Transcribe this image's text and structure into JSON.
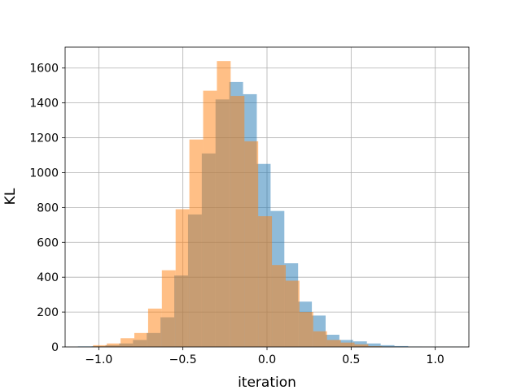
{
  "chart_data": {
    "type": "histogram",
    "title": "",
    "xlabel": "iteration",
    "ylabel": "KL",
    "xlim": [
      -1.2,
      1.2
    ],
    "ylim": [
      0,
      1720
    ],
    "xticks": [
      -1.0,
      -0.5,
      0.0,
      0.5,
      1.0
    ],
    "xtick_labels": [
      "−1.0",
      "−0.5",
      "0.0",
      "0.5",
      "1.0"
    ],
    "yticks": [
      0,
      200,
      400,
      600,
      800,
      1000,
      1200,
      1400,
      1600
    ],
    "ytick_labels": [
      "0",
      "200",
      "400",
      "600",
      "800",
      "1000",
      "1200",
      "1400",
      "1600"
    ],
    "grid": true,
    "legend": "none",
    "series": [
      {
        "color": "#1f77b4",
        "opacity": 0.5,
        "bin_start": -1.124,
        "bin_width": 0.0818,
        "counts": [
          3,
          4,
          10,
          20,
          40,
          80,
          170,
          410,
          760,
          1110,
          1420,
          1520,
          1450,
          1050,
          780,
          480,
          260,
          180,
          70,
          40,
          32,
          20,
          10,
          5,
          2,
          1,
          1,
          1
        ]
      },
      {
        "color": "#ff7f0e",
        "opacity": 0.5,
        "bin_start": -1.034,
        "bin_width": 0.0818,
        "counts": [
          10,
          20,
          50,
          80,
          220,
          440,
          790,
          1190,
          1470,
          1640,
          1440,
          1180,
          750,
          470,
          380,
          200,
          90,
          40,
          25,
          15,
          4,
          1
        ]
      }
    ]
  }
}
